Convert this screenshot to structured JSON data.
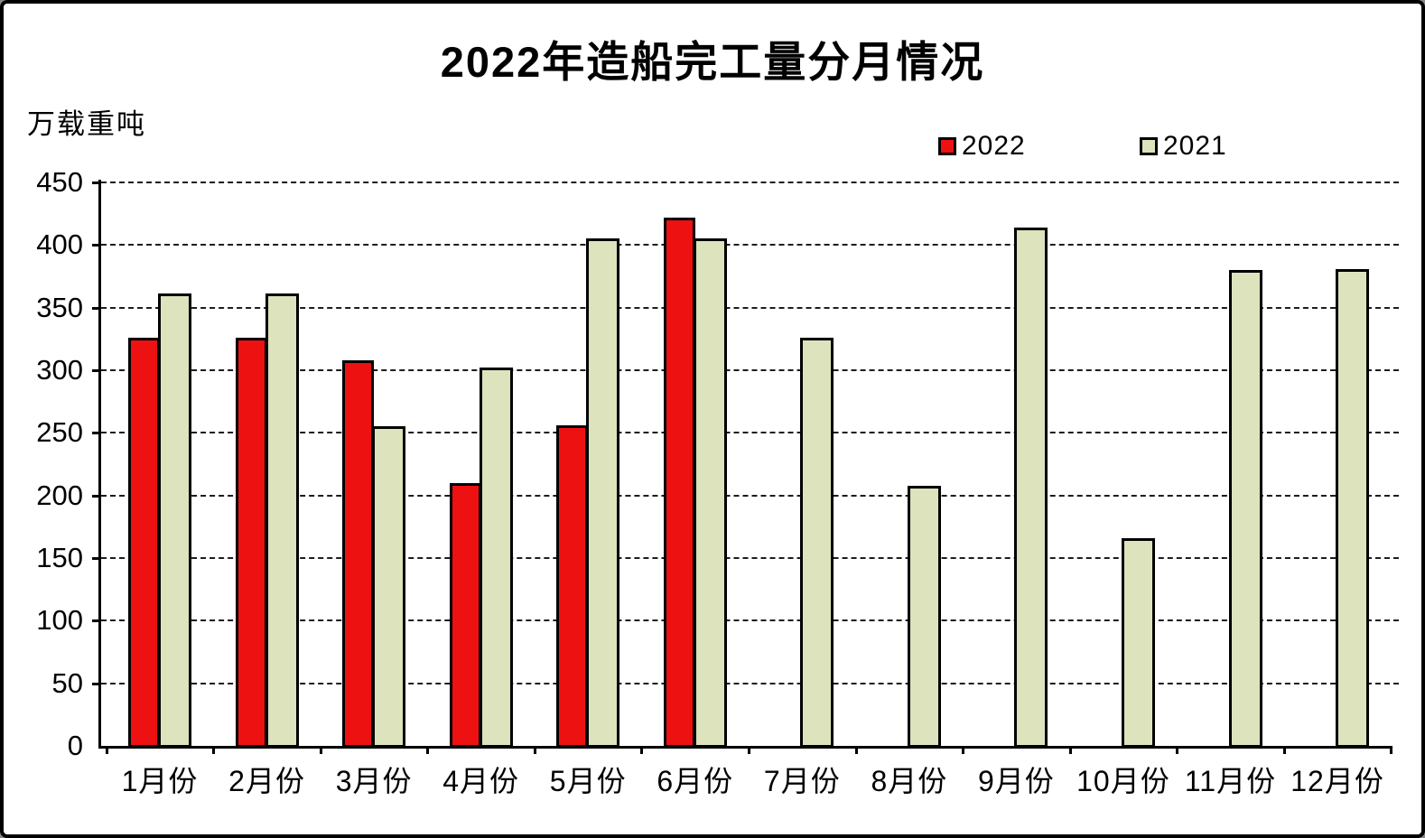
{
  "title": "2022年造船完工量分月情况",
  "unit_label": "万载重吨",
  "legend": [
    {
      "label": "2022",
      "color": "#ee1111"
    },
    {
      "label": "2021",
      "color": "#dce3bd"
    }
  ],
  "colors": {
    "background": "#ffffff",
    "frame_border": "#000000",
    "axis": "#000000",
    "grid": "#1c1c1c",
    "bar_border": "#000000",
    "series_2022": "#ee1111",
    "series_2021": "#dce3bd"
  },
  "chart_data": {
    "type": "bar",
    "title": "2022年造船完工量分月情况",
    "xlabel": "",
    "ylabel": "万载重吨",
    "categories": [
      "1月份",
      "2月份",
      "3月份",
      "4月份",
      "5月份",
      "6月份",
      "7月份",
      "8月份",
      "9月份",
      "10月份",
      "11月份",
      "12月份"
    ],
    "series": [
      {
        "name": "2022",
        "color": "#ee1111",
        "values": [
          326,
          326,
          308,
          210,
          256,
          422,
          null,
          null,
          null,
          null,
          null,
          null
        ]
      },
      {
        "name": "2021",
        "color": "#dce3bd",
        "values": [
          361,
          361,
          255,
          302,
          405,
          405,
          326,
          208,
          414,
          166,
          380,
          381
        ]
      }
    ],
    "ylim": [
      0,
      450
    ],
    "ytick_step": 50,
    "grid": "horizontal-dashed",
    "legend_position": "top-right"
  }
}
